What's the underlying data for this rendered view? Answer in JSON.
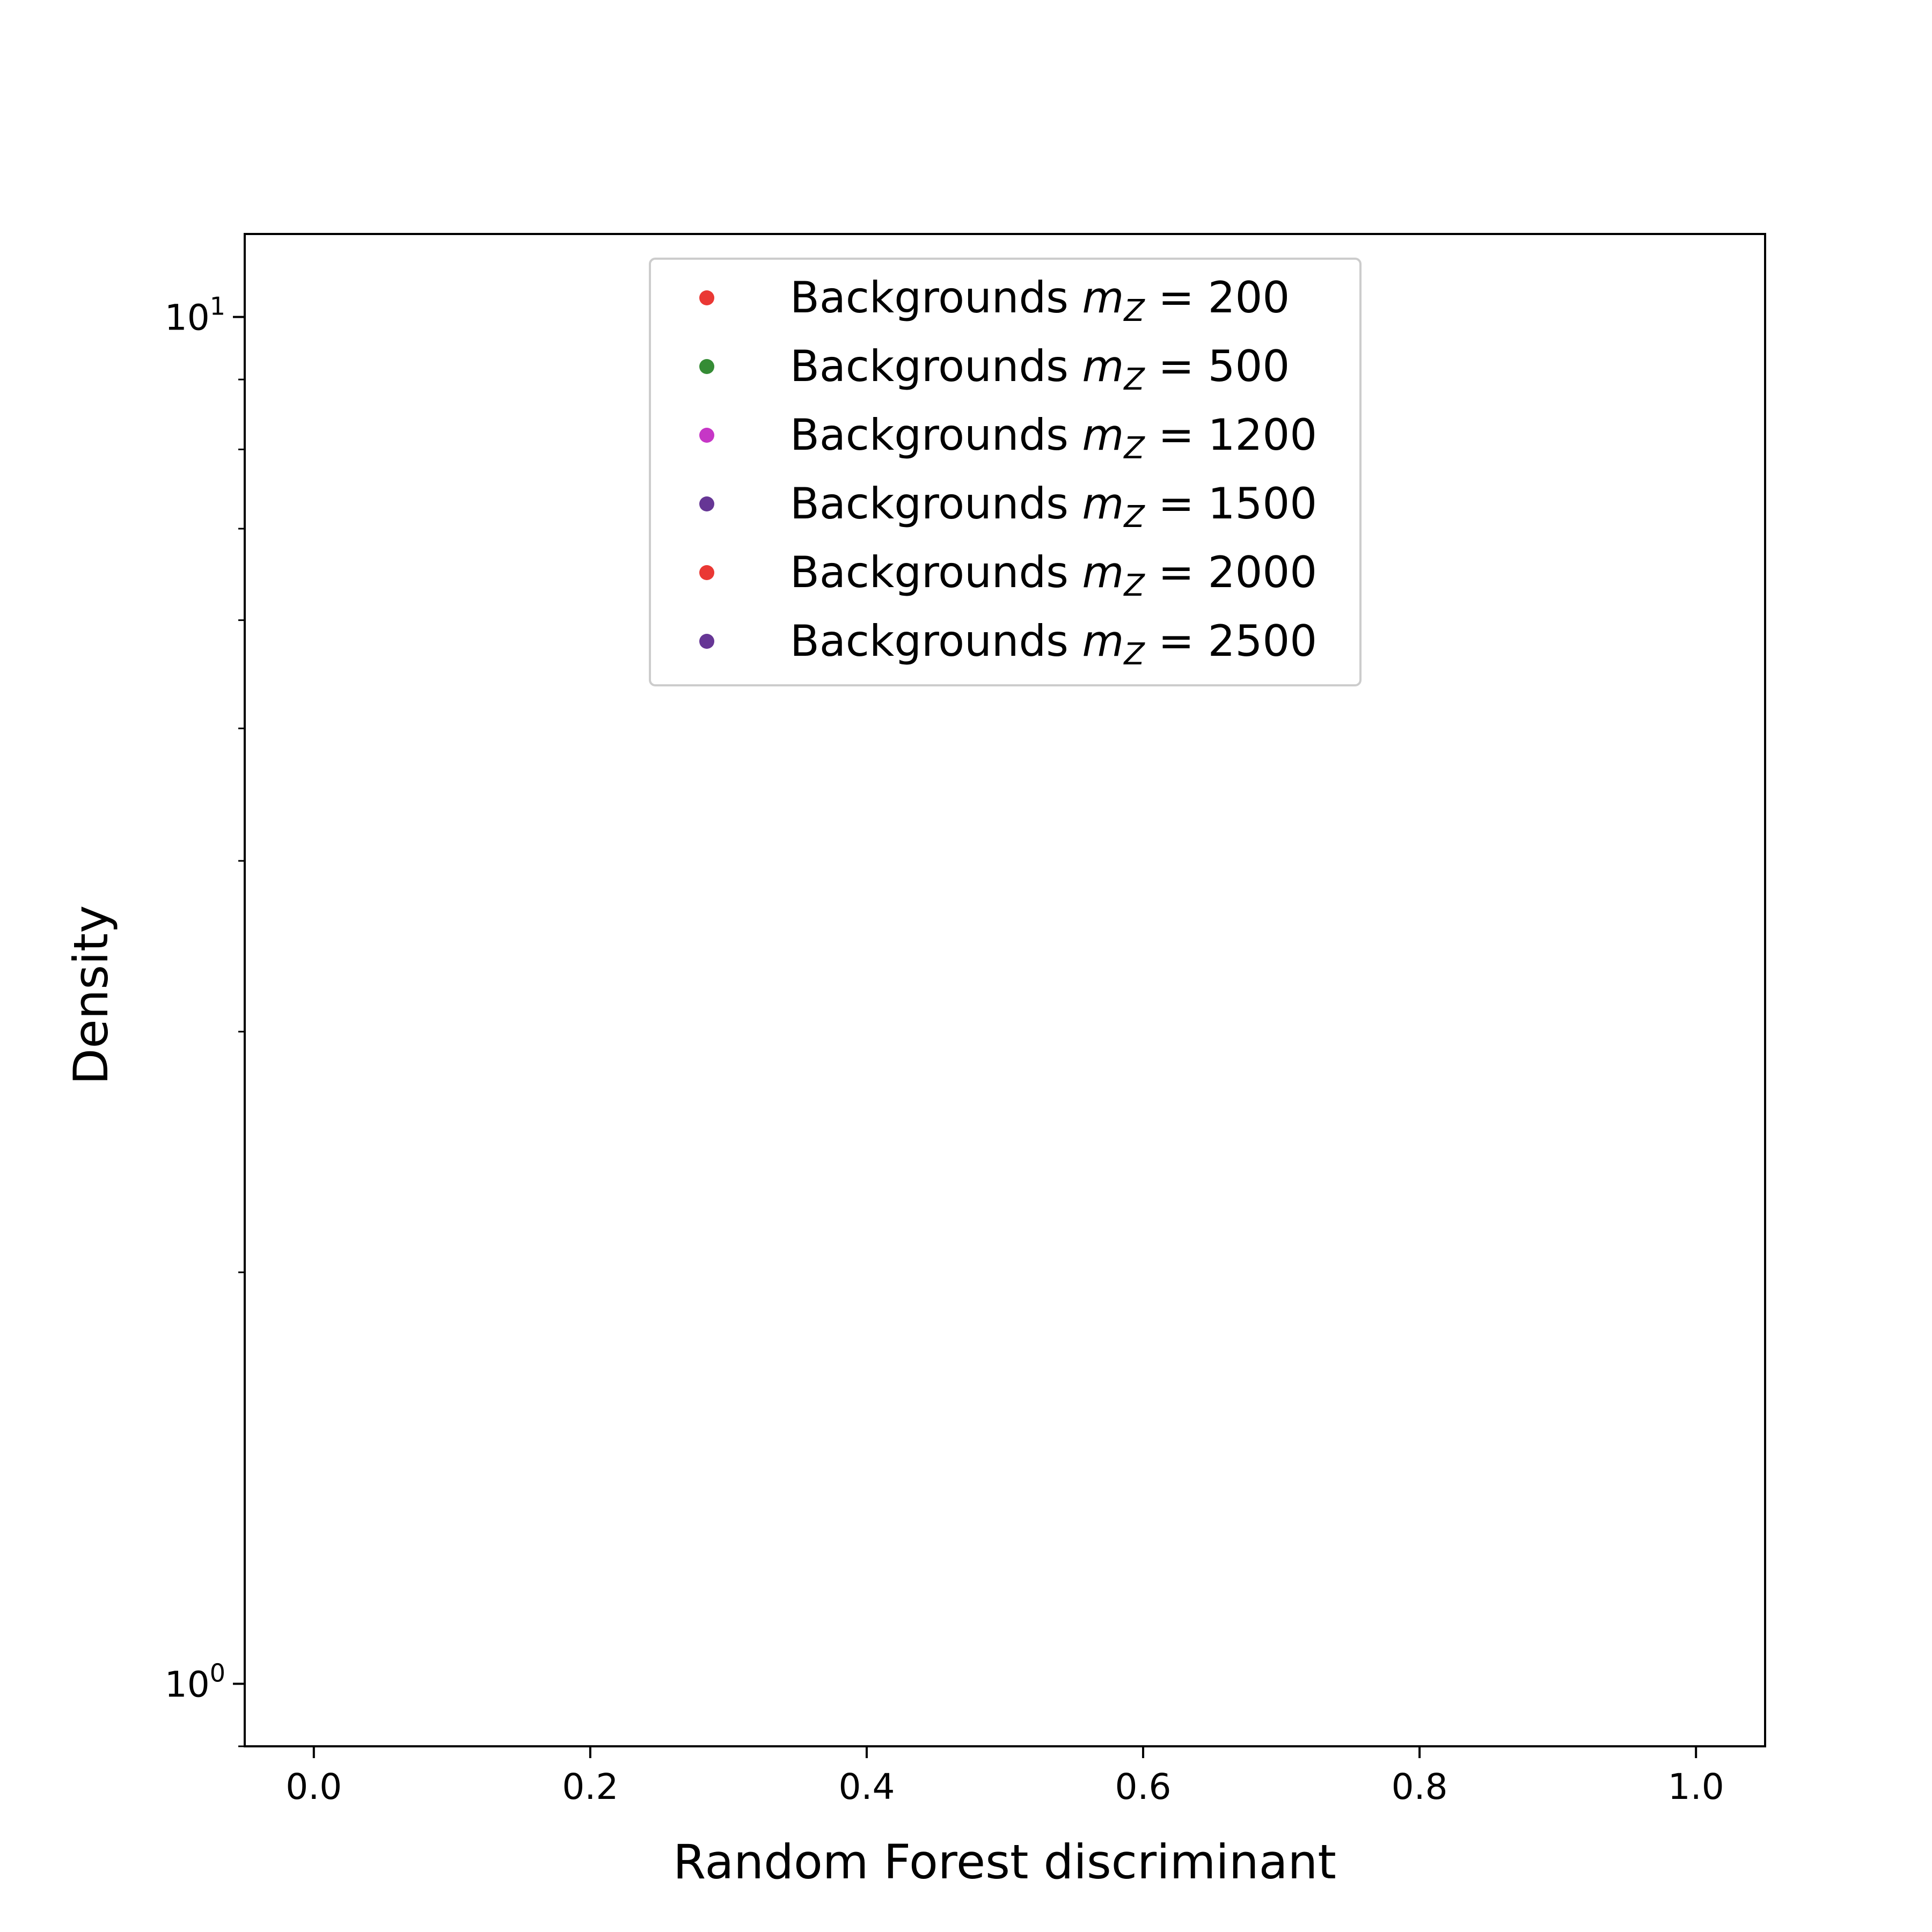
{
  "chart_data": {
    "type": "scatter",
    "title": "",
    "xlabel": "Random Forest discriminant",
    "ylabel": "Density",
    "xlim": [
      -0.05,
      1.05
    ],
    "ylim": [
      0.9,
      11.5
    ],
    "yscale": "log",
    "grid": false,
    "legend_position": "upper-center",
    "x_ticks": [
      {
        "value": 0.0,
        "label": "0.0"
      },
      {
        "value": 0.2,
        "label": "0.2"
      },
      {
        "value": 0.4,
        "label": "0.4"
      },
      {
        "value": 0.6,
        "label": "0.6"
      },
      {
        "value": 0.8,
        "label": "0.8"
      },
      {
        "value": 1.0,
        "label": "1.0"
      }
    ],
    "y_major_ticks": [
      {
        "value": 1,
        "base": "10",
        "exp": "0"
      },
      {
        "value": 10,
        "base": "10",
        "exp": "1"
      }
    ],
    "y_minor_ticks": [
      0.9,
      2,
      3,
      4,
      5,
      6,
      7,
      8,
      9
    ],
    "series": [
      {
        "name_prefix": "Backgrounds",
        "mass": "200",
        "color": "#e8221e",
        "points": []
      },
      {
        "name_prefix": "Backgrounds",
        "mass": "500",
        "color": "#1f7f1f",
        "points": []
      },
      {
        "name_prefix": "Backgrounds",
        "mass": "1200",
        "color": "#c020c0",
        "points": []
      },
      {
        "name_prefix": "Backgrounds",
        "mass": "1500",
        "color": "#55208a",
        "points": []
      },
      {
        "name_prefix": "Backgrounds",
        "mass": "2000",
        "color": "#e8221e",
        "points": []
      },
      {
        "name_prefix": "Backgrounds",
        "mass": "2500",
        "color": "#55208a",
        "points": []
      }
    ]
  }
}
